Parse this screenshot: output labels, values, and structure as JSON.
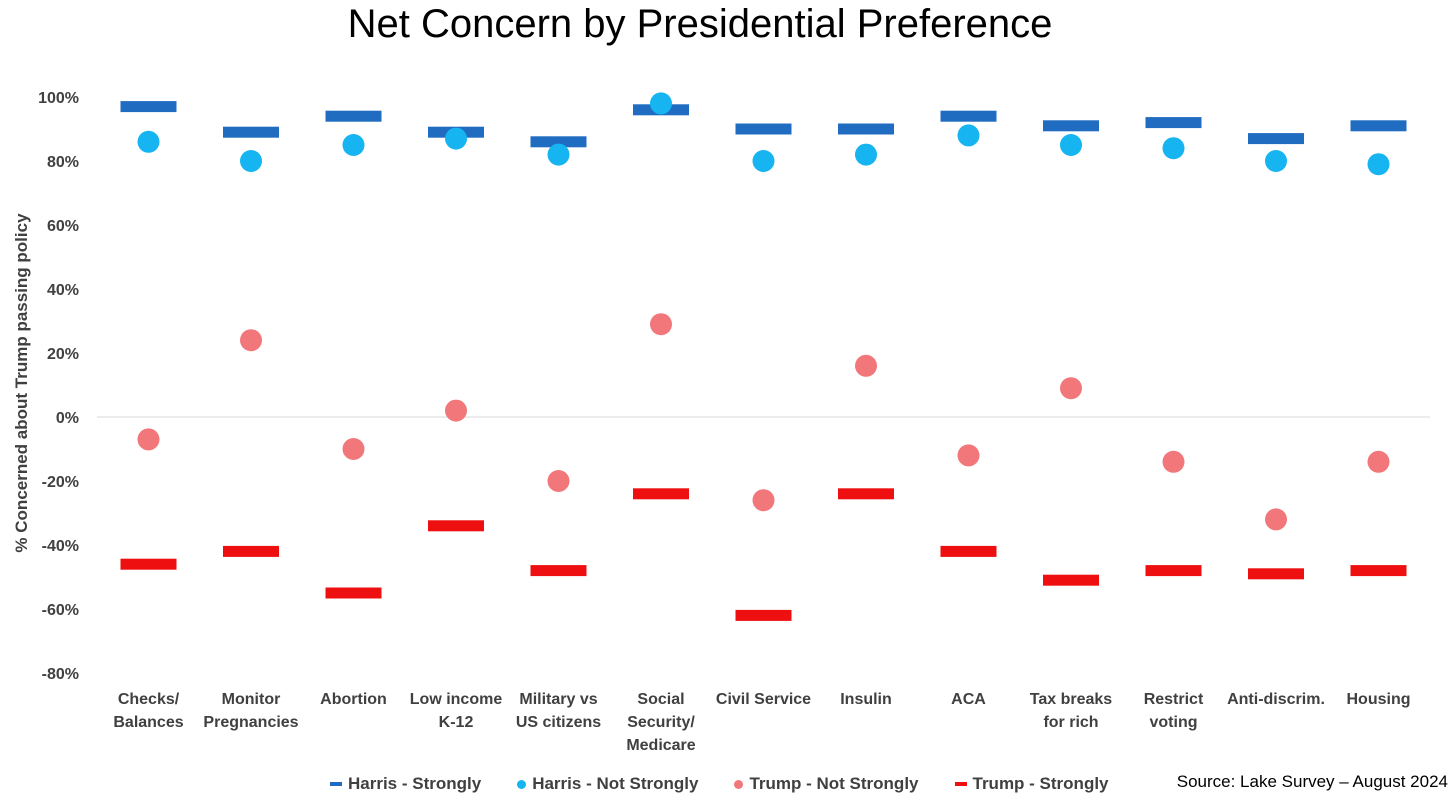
{
  "chart_data": {
    "type": "scatter",
    "title": "Net Concern by Presidential Preference",
    "xlabel": "",
    "ylabel": "% Concerned about Trump passing policy",
    "ylim": [
      -80,
      100
    ],
    "yticks": [
      "100%",
      "80%",
      "60%",
      "40%",
      "20%",
      "0%",
      "-20%",
      "-40%",
      "-60%",
      "-80%"
    ],
    "categories": [
      [
        "Checks/",
        "Balances"
      ],
      [
        "Monitor",
        "Pregnancies"
      ],
      [
        "Abortion"
      ],
      [
        "Low income",
        "K-12"
      ],
      [
        "Military vs",
        "US citizens"
      ],
      [
        "Social",
        "Security/",
        "Medicare"
      ],
      [
        "Civil Service"
      ],
      [
        "Insulin"
      ],
      [
        "ACA"
      ],
      [
        "Tax breaks",
        "for rich"
      ],
      [
        "Restrict",
        "voting"
      ],
      [
        "Anti-discrim."
      ],
      [
        "Housing"
      ]
    ],
    "series": [
      {
        "name": "Harris - Strongly",
        "marker": "dash",
        "color": "#1f6cc1",
        "values": [
          97,
          89,
          94,
          89,
          86,
          96,
          90,
          90,
          94,
          91,
          92,
          87,
          91
        ]
      },
      {
        "name": "Harris - Not Strongly",
        "marker": "circle",
        "color": "#16b4f0",
        "values": [
          86,
          80,
          85,
          87,
          82,
          98,
          80,
          82,
          88,
          85,
          84,
          80,
          79
        ]
      },
      {
        "name": "Trump - Not Strongly",
        "marker": "circle",
        "color": "#f2777a",
        "values": [
          -7,
          24,
          -10,
          2,
          -20,
          29,
          -26,
          16,
          -12,
          9,
          -14,
          -32,
          -14
        ]
      },
      {
        "name": "Trump - Strongly",
        "marker": "dash",
        "color": "#ee1010",
        "values": [
          -46,
          -42,
          -55,
          -34,
          -48,
          -24,
          -62,
          -24,
          -42,
          -51,
          -48,
          -49,
          -48
        ]
      }
    ],
    "grid": false,
    "zero_line": true,
    "legend_position": "bottom"
  },
  "source": "Source: Lake Survey – August 2024"
}
